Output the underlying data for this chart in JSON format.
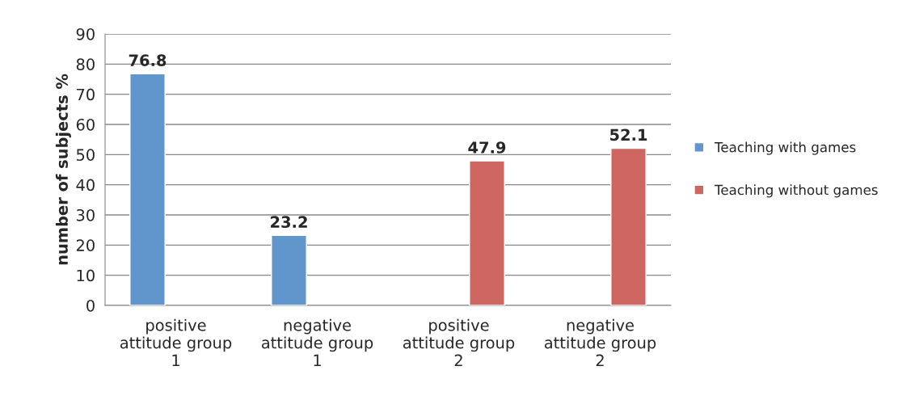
{
  "chart_data": {
    "type": "bar",
    "ylabel": "number of subjects %",
    "categories": [
      "positive\nattitude group\n1",
      "negative\nattitude group\n1",
      "positive\nattitude group\n2",
      "negative\nattitude group\n2"
    ],
    "series": [
      {
        "name": "Teaching with games",
        "color": "#6096cb",
        "values": [
          76.8,
          23.2,
          null,
          null
        ]
      },
      {
        "name": "Teaching without games",
        "color": "#cd6660",
        "values": [
          null,
          null,
          47.9,
          52.1
        ]
      }
    ],
    "ylim": [
      0,
      90
    ],
    "yticks": [
      0,
      10,
      20,
      30,
      40,
      50,
      60,
      70,
      80,
      90
    ],
    "grid": "y",
    "legend": "right",
    "data_labels": true
  }
}
